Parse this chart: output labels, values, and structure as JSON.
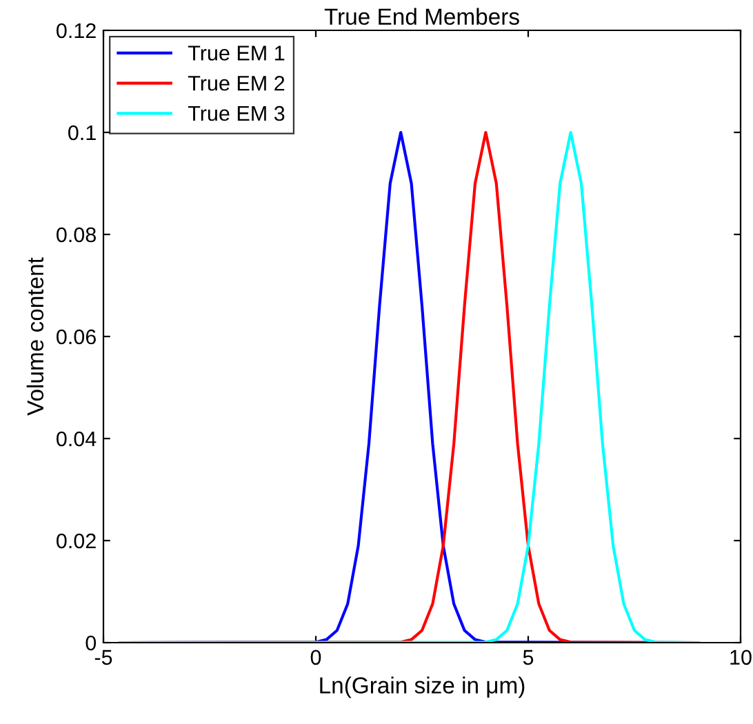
{
  "chart_data": {
    "type": "line",
    "title": "True End Members",
    "xlabel": "Ln(Grain size in μm)",
    "ylabel": "Volume content",
    "xlim": [
      -5,
      10
    ],
    "xticks": [
      -5,
      0,
      5,
      10
    ],
    "ylim": [
      0,
      0.12
    ],
    "yticks": [
      0,
      0.02,
      0.04,
      0.06,
      0.08,
      0.1,
      0.12
    ],
    "grid": false,
    "legend": "top left",
    "marker": "none",
    "line_style": "solid",
    "series": [
      {
        "name": "True EM 1",
        "color": "#0000ff",
        "x": [
          -4.6,
          0,
          0.25,
          0.5,
          0.75,
          1,
          1.25,
          1.5,
          1.75,
          2,
          2.25,
          2.5,
          2.75,
          3,
          3.25,
          3.5,
          3.75,
          4,
          9.0
        ],
        "values": [
          0,
          0.0001,
          0.0006,
          0.0024,
          0.0076,
          0.019,
          0.039,
          0.066,
          0.09,
          0.1,
          0.09,
          0.066,
          0.039,
          0.019,
          0.0076,
          0.0024,
          0.0006,
          0.0001,
          0
        ]
      },
      {
        "name": "True EM 2",
        "color": "#ff0000",
        "x": [
          -4.6,
          2,
          2.25,
          2.5,
          2.75,
          3,
          3.25,
          3.5,
          3.75,
          4,
          4.25,
          4.5,
          4.75,
          5,
          5.25,
          5.5,
          5.75,
          6,
          9.0
        ],
        "values": [
          0,
          0.0001,
          0.0006,
          0.0024,
          0.0076,
          0.019,
          0.039,
          0.066,
          0.09,
          0.1,
          0.09,
          0.066,
          0.039,
          0.019,
          0.0076,
          0.0024,
          0.0006,
          0.0001,
          0
        ]
      },
      {
        "name": "True EM 3",
        "color": "#00ffff",
        "x": [
          -4.6,
          4,
          4.25,
          4.5,
          4.75,
          5,
          5.25,
          5.5,
          5.75,
          6,
          6.25,
          6.5,
          6.75,
          7,
          7.25,
          7.5,
          7.75,
          8,
          9.0
        ],
        "values": [
          0,
          0.0001,
          0.0006,
          0.0024,
          0.0076,
          0.019,
          0.039,
          0.066,
          0.09,
          0.1,
          0.09,
          0.066,
          0.039,
          0.019,
          0.0076,
          0.0024,
          0.0006,
          0.0001,
          0
        ]
      }
    ]
  }
}
